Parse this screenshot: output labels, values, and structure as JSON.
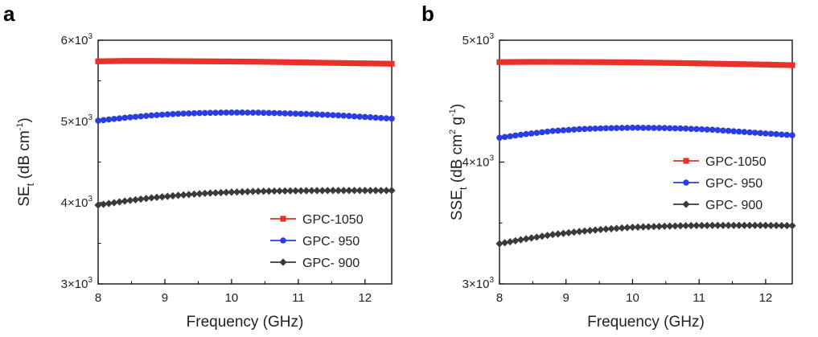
{
  "chart_data": [
    {
      "panel": "a",
      "type": "line",
      "xlabel": "Frequency (GHz)",
      "ylabel": {
        "main": "SE",
        "sub": "t",
        "units": " (dB cm",
        "sup": "-1",
        "close": ")"
      },
      "xlim": [
        8,
        12.4
      ],
      "ylim": [
        3000,
        6000
      ],
      "xticks": [
        8,
        9,
        10,
        11,
        12
      ],
      "yticks": [
        {
          "value": 3000,
          "mant": "3×10",
          "exp": "3"
        },
        {
          "value": 4000,
          "mant": "4×10",
          "exp": "3"
        },
        {
          "value": 5000,
          "mant": "5×10",
          "exp": "3"
        },
        {
          "value": 6000,
          "mant": "6×10",
          "exp": "3"
        }
      ],
      "legend_position": "bottom-right",
      "x": [
        8.0,
        8.4,
        8.8,
        9.2,
        9.6,
        10.0,
        10.4,
        10.8,
        11.2,
        11.6,
        12.0,
        12.4
      ],
      "series": [
        {
          "name": "GPC-1050",
          "color": "#e8312a",
          "marker": "square",
          "values": [
            5740,
            5745,
            5745,
            5742,
            5740,
            5738,
            5735,
            5730,
            5725,
            5720,
            5715,
            5710
          ]
        },
        {
          "name": "GPC- 950",
          "color": "#2a3ee0",
          "marker": "circle",
          "values": [
            5010,
            5045,
            5075,
            5095,
            5105,
            5110,
            5108,
            5100,
            5090,
            5075,
            5055,
            5035
          ]
        },
        {
          "name": "GPC- 900",
          "color": "#3a3a3a",
          "marker": "diamond",
          "values": [
            3970,
            4020,
            4060,
            4090,
            4115,
            4130,
            4140,
            4145,
            4148,
            4150,
            4150,
            4150
          ]
        }
      ]
    },
    {
      "panel": "b",
      "type": "line",
      "xlabel": "Frequency (GHz)",
      "ylabel": {
        "main": "SSE",
        "sub": "t",
        "units": " (dB cm",
        "sup": "2",
        "mid": " g",
        "sup2": "-1",
        "close": ")"
      },
      "xlim": [
        8,
        12.4
      ],
      "ylim": [
        3000,
        5000
      ],
      "xticks": [
        8,
        9,
        10,
        11,
        12
      ],
      "yticks": [
        {
          "value": 3000,
          "mant": "3×10",
          "exp": "3"
        },
        {
          "value": 4000,
          "mant": "4×10",
          "exp": "3"
        },
        {
          "value": 5000,
          "mant": "5×10",
          "exp": "3"
        }
      ],
      "legend_position": "right-middle",
      "x": [
        8.0,
        8.4,
        8.8,
        9.2,
        9.6,
        10.0,
        10.4,
        10.8,
        11.2,
        11.6,
        12.0,
        12.4
      ],
      "series": [
        {
          "name": "GPC-1050",
          "color": "#e8312a",
          "marker": "square",
          "values": [
            4820,
            4822,
            4822,
            4821,
            4820,
            4818,
            4815,
            4812,
            4808,
            4804,
            4800,
            4795
          ]
        },
        {
          "name": "GPC- 950",
          "color": "#2a3ee0",
          "marker": "circle",
          "values": [
            4200,
            4230,
            4255,
            4270,
            4278,
            4282,
            4280,
            4275,
            4265,
            4250,
            4235,
            4220
          ]
        },
        {
          "name": "GPC- 900",
          "color": "#3a3a3a",
          "marker": "diamond",
          "values": [
            3330,
            3370,
            3405,
            3430,
            3450,
            3465,
            3472,
            3478,
            3480,
            3480,
            3480,
            3478
          ]
        }
      ]
    }
  ]
}
